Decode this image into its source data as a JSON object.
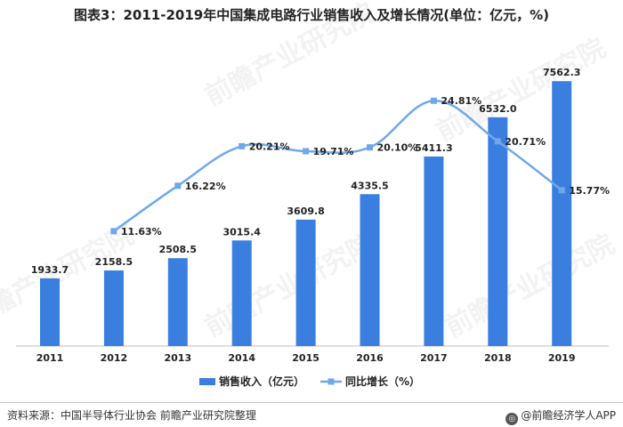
{
  "title": "图表3：2011-2019年中国集成电路行业销售收入及增长情况(单位：亿元，%)",
  "watermark": "前瞻产业研究院",
  "source": "资料来源：中国半导体行业协会 前瞻产业研究院整理",
  "brand": "@前瞻经济学人APP",
  "colors": {
    "bar": "#3a7fe0",
    "line": "#6fa8ea",
    "text": "#222222",
    "axis": "#bfbfbf"
  },
  "chart_data": {
    "type": "bar+line",
    "categories": [
      "2011",
      "2012",
      "2013",
      "2014",
      "2015",
      "2016",
      "2017",
      "2018",
      "2019"
    ],
    "series": [
      {
        "name": "销售收入（亿元）",
        "type": "bar",
        "values": [
          1933.7,
          2158.5,
          2508.5,
          3015.4,
          3609.8,
          4335.5,
          5411.3,
          6532.0,
          7562.3
        ],
        "labels": [
          "1933.7",
          "2158.5",
          "2508.5",
          "3015.4",
          "3609.8",
          "4335.5",
          "5411.3",
          "6532.0",
          "7562.3"
        ]
      },
      {
        "name": "同比增长（%）",
        "type": "line",
        "values": [
          null,
          11.63,
          16.22,
          20.21,
          19.71,
          20.1,
          24.81,
          20.71,
          15.77
        ],
        "labels": [
          "",
          "11.63%",
          "16.22%",
          "20.21%",
          "19.71%",
          "20.10%",
          "24.81%",
          "20.71%",
          "15.77%"
        ]
      }
    ],
    "legend_position": "bottom-center",
    "grid": false
  }
}
